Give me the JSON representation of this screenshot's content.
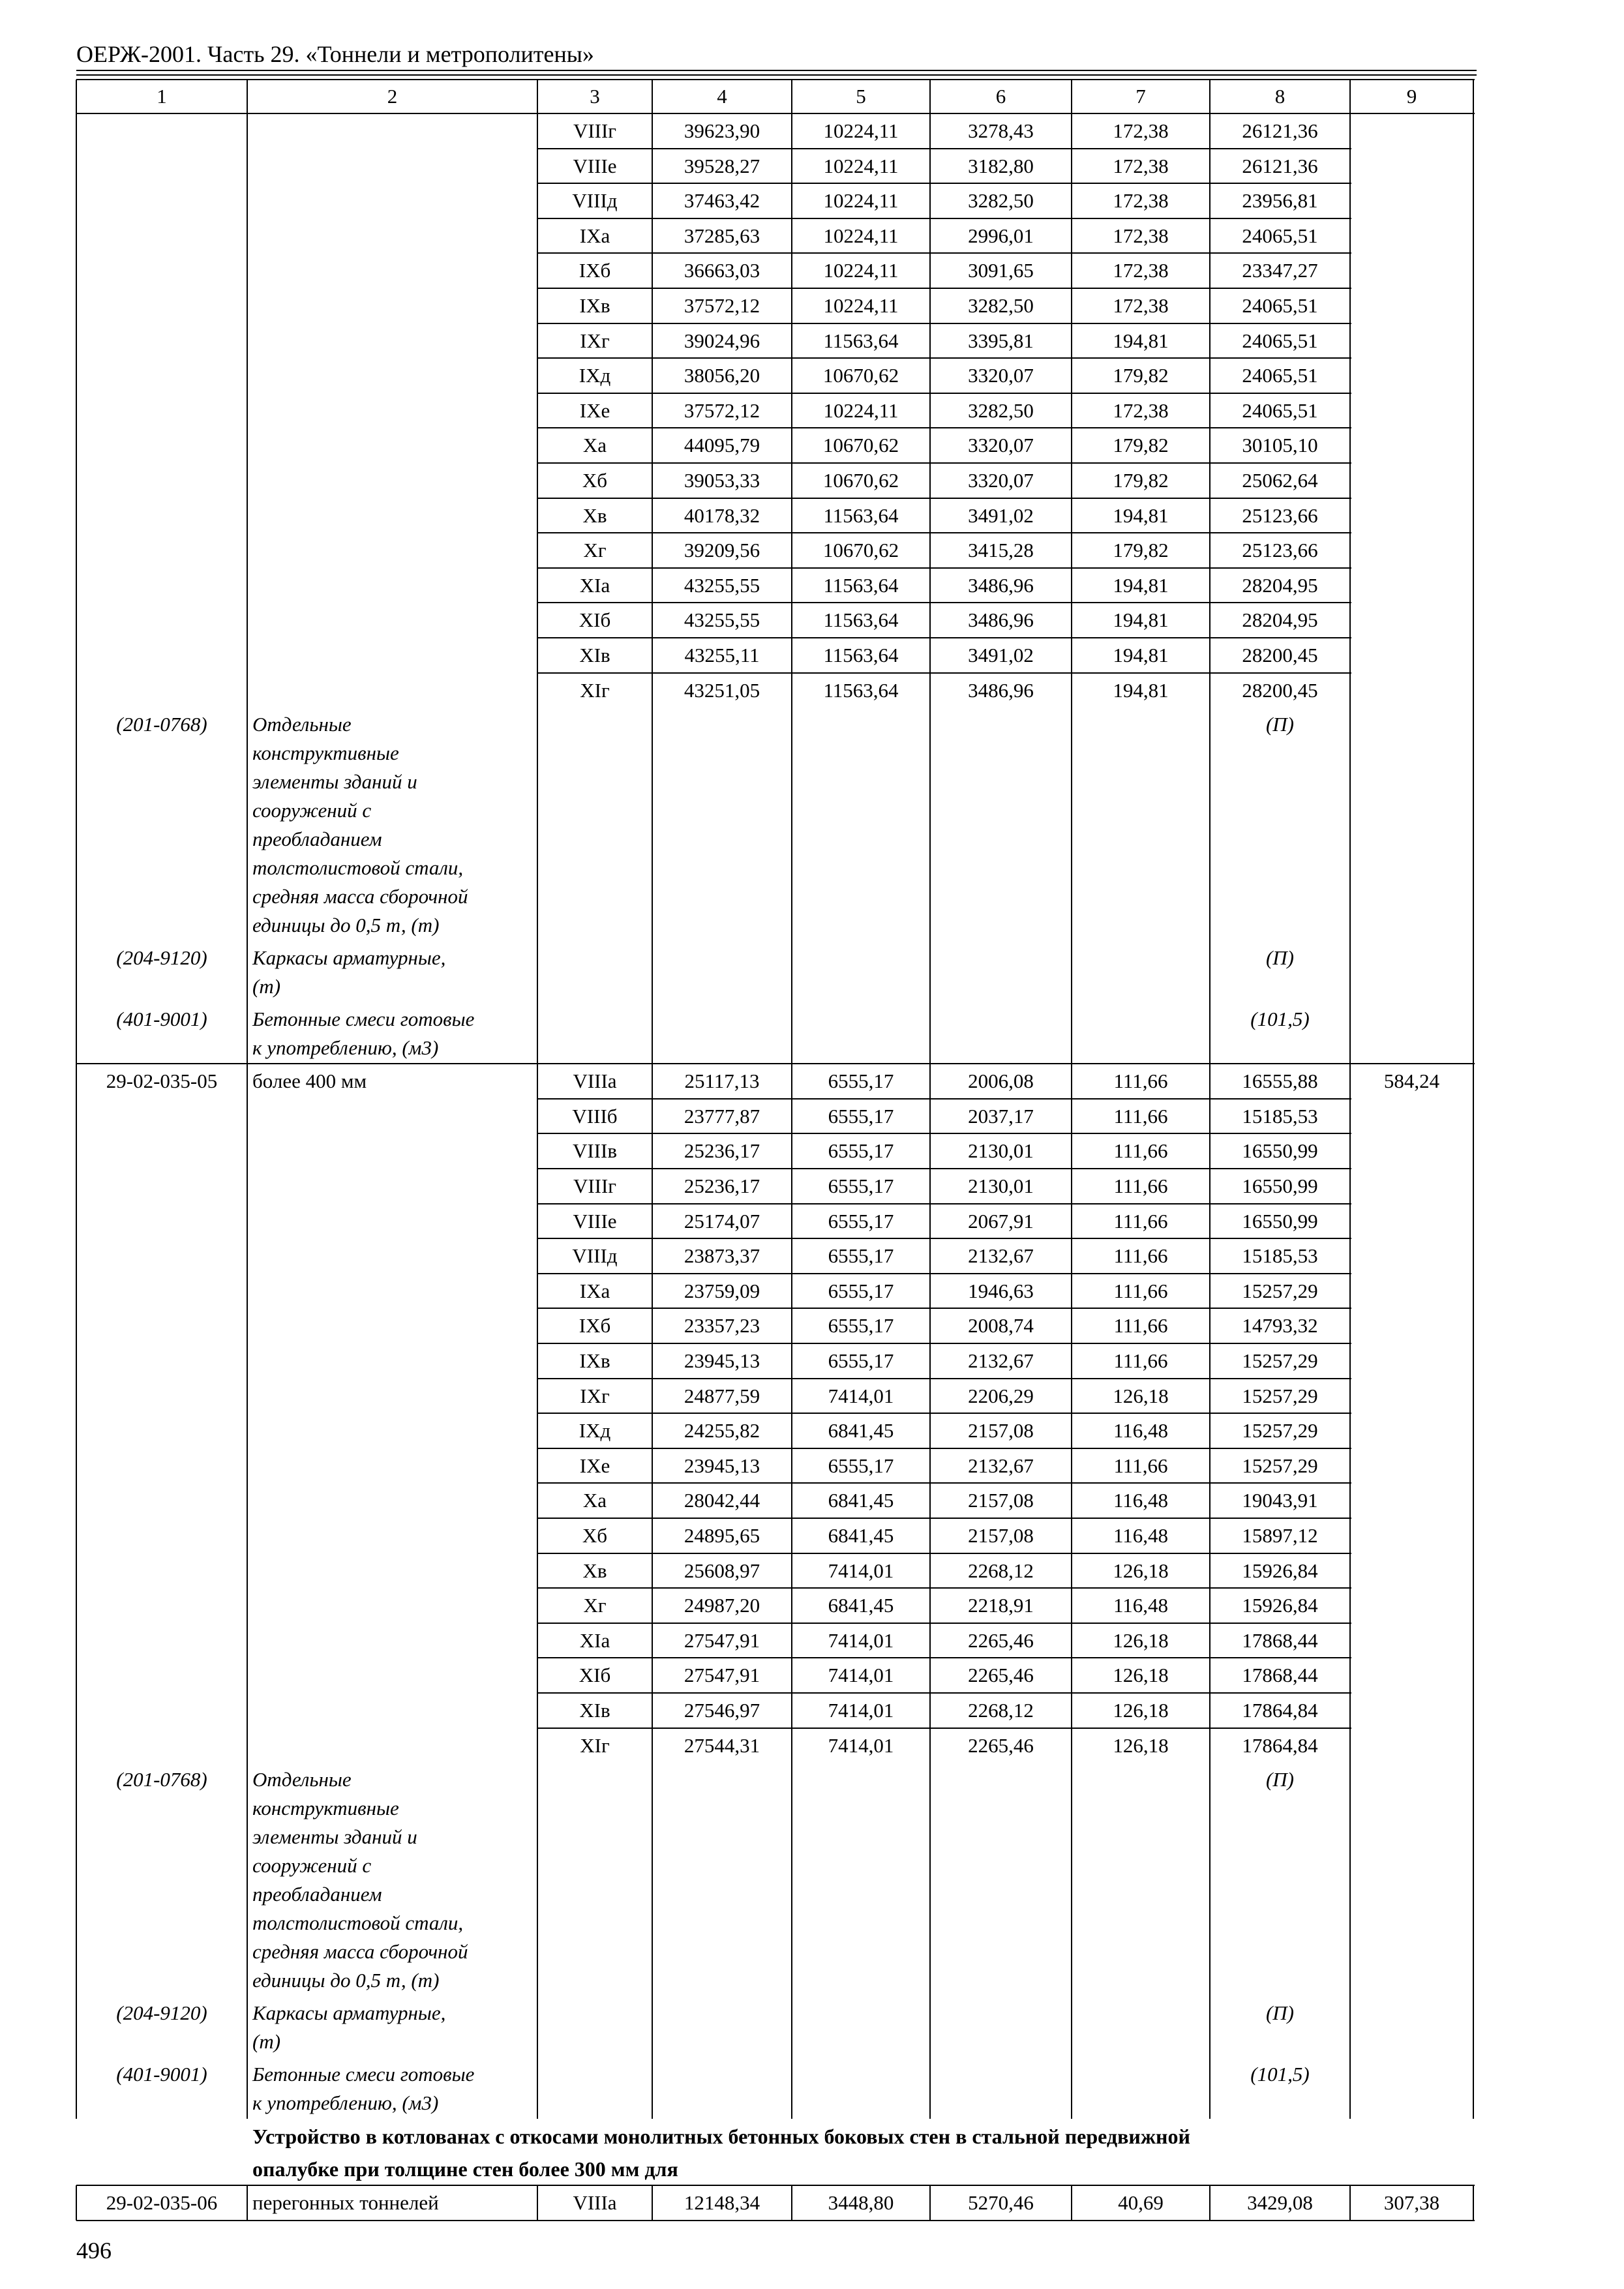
{
  "header": {
    "title": "ОЕРЖ-2001. Часть 29. «Тоннели и метрополитены»"
  },
  "table": {
    "columns": [
      "1",
      "2",
      "3",
      "4",
      "5",
      "6",
      "7",
      "8",
      "9"
    ],
    "sections": [
      {
        "rows": [
          [
            "VIIIг",
            "39623,90",
            "10224,11",
            "3278,43",
            "172,38",
            "26121,36"
          ],
          [
            "VIIIе",
            "39528,27",
            "10224,11",
            "3182,80",
            "172,38",
            "26121,36"
          ],
          [
            "VIIIд",
            "37463,42",
            "10224,11",
            "3282,50",
            "172,38",
            "23956,81"
          ],
          [
            "IXа",
            "37285,63",
            "10224,11",
            "2996,01",
            "172,38",
            "24065,51"
          ],
          [
            "IXб",
            "36663,03",
            "10224,11",
            "3091,65",
            "172,38",
            "23347,27"
          ],
          [
            "IXв",
            "37572,12",
            "10224,11",
            "3282,50",
            "172,38",
            "24065,51"
          ],
          [
            "IXг",
            "39024,96",
            "11563,64",
            "3395,81",
            "194,81",
            "24065,51"
          ],
          [
            "IXд",
            "38056,20",
            "10670,62",
            "3320,07",
            "179,82",
            "24065,51"
          ],
          [
            "IXе",
            "37572,12",
            "10224,11",
            "3282,50",
            "172,38",
            "24065,51"
          ],
          [
            "Xа",
            "44095,79",
            "10670,62",
            "3320,07",
            "179,82",
            "30105,10"
          ],
          [
            "Xб",
            "39053,33",
            "10670,62",
            "3320,07",
            "179,82",
            "25062,64"
          ],
          [
            "Xв",
            "40178,32",
            "11563,64",
            "3491,02",
            "194,81",
            "25123,66"
          ],
          [
            "Xг",
            "39209,56",
            "10670,62",
            "3415,28",
            "179,82",
            "25123,66"
          ],
          [
            "XIа",
            "43255,55",
            "11563,64",
            "3486,96",
            "194,81",
            "28204,95"
          ],
          [
            "XIб",
            "43255,55",
            "11563,64",
            "3486,96",
            "194,81",
            "28204,95"
          ],
          [
            "XIв",
            "43255,11",
            "11563,64",
            "3491,02",
            "194,81",
            "28200,45"
          ],
          [
            "XIг",
            "43251,05",
            "11563,64",
            "3486,96",
            "194,81",
            "28200,45"
          ]
        ],
        "resources": [
          {
            "code": "(201-0768)",
            "name_lines": [
              "Отдельные",
              "конструктивные",
              "элементы зданий и",
              "сооружений с",
              "преобладанием",
              "толстолистовой стали,",
              "средняя масса сборочной",
              "единицы до 0,5 т, (т)"
            ],
            "value": "(П)"
          },
          {
            "code": "(204-9120)",
            "name_lines": [
              "Каркасы арматурные,",
              "(т)"
            ],
            "value": "(П)"
          },
          {
            "code": "(401-9001)",
            "name_lines": [
              "Бетонные смеси готовые",
              "к употреблению, (м3)"
            ],
            "value": "(101,5)"
          }
        ]
      },
      {
        "code": "29-02-035-05",
        "name": "более 400 мм",
        "total": "584,24",
        "rows": [
          [
            "VIIIа",
            "25117,13",
            "6555,17",
            "2006,08",
            "111,66",
            "16555,88"
          ],
          [
            "VIIIб",
            "23777,87",
            "6555,17",
            "2037,17",
            "111,66",
            "15185,53"
          ],
          [
            "VIIIв",
            "25236,17",
            "6555,17",
            "2130,01",
            "111,66",
            "16550,99"
          ],
          [
            "VIIIг",
            "25236,17",
            "6555,17",
            "2130,01",
            "111,66",
            "16550,99"
          ],
          [
            "VIIIе",
            "25174,07",
            "6555,17",
            "2067,91",
            "111,66",
            "16550,99"
          ],
          [
            "VIIIд",
            "23873,37",
            "6555,17",
            "2132,67",
            "111,66",
            "15185,53"
          ],
          [
            "IXа",
            "23759,09",
            "6555,17",
            "1946,63",
            "111,66",
            "15257,29"
          ],
          [
            "IXб",
            "23357,23",
            "6555,17",
            "2008,74",
            "111,66",
            "14793,32"
          ],
          [
            "IXв",
            "23945,13",
            "6555,17",
            "2132,67",
            "111,66",
            "15257,29"
          ],
          [
            "IXг",
            "24877,59",
            "7414,01",
            "2206,29",
            "126,18",
            "15257,29"
          ],
          [
            "IXд",
            "24255,82",
            "6841,45",
            "2157,08",
            "116,48",
            "15257,29"
          ],
          [
            "IXе",
            "23945,13",
            "6555,17",
            "2132,67",
            "111,66",
            "15257,29"
          ],
          [
            "Xа",
            "28042,44",
            "6841,45",
            "2157,08",
            "116,48",
            "19043,91"
          ],
          [
            "Xб",
            "24895,65",
            "6841,45",
            "2157,08",
            "116,48",
            "15897,12"
          ],
          [
            "Xв",
            "25608,97",
            "7414,01",
            "2268,12",
            "126,18",
            "15926,84"
          ],
          [
            "Xг",
            "24987,20",
            "6841,45",
            "2218,91",
            "116,48",
            "15926,84"
          ],
          [
            "XIа",
            "27547,91",
            "7414,01",
            "2265,46",
            "126,18",
            "17868,44"
          ],
          [
            "XIб",
            "27547,91",
            "7414,01",
            "2265,46",
            "126,18",
            "17868,44"
          ],
          [
            "XIв",
            "27546,97",
            "7414,01",
            "2268,12",
            "126,18",
            "17864,84"
          ],
          [
            "XIг",
            "27544,31",
            "7414,01",
            "2265,46",
            "126,18",
            "17864,84"
          ]
        ],
        "resources": [
          {
            "code": "(201-0768)",
            "name_lines": [
              "Отдельные",
              "конструктивные",
              "элементы зданий и",
              "сооружений с",
              "преобладанием",
              "толстолистовой стали,",
              "средняя масса сборочной",
              "единицы до 0,5 т, (т)"
            ],
            "value": "(П)"
          },
          {
            "code": "(204-9120)",
            "name_lines": [
              "Каркасы арматурные,",
              "(т)"
            ],
            "value": "(П)"
          },
          {
            "code": "(401-9001)",
            "name_lines": [
              "Бетонные смеси готовые",
              "к употреблению, (м3)"
            ],
            "value": "(101,5)"
          }
        ]
      },
      {
        "heading_lines": [
          "Устройство в котлованах с откосами монолитных бетонных боковых стен в стальной передвижной",
          "опалубке при толщине стен более 300 мм для"
        ],
        "code": "29-02-035-06",
        "name": "перегонных тоннелей",
        "total": "307,38",
        "rows": [
          [
            "VIIIа",
            "12148,34",
            "3448,80",
            "5270,46",
            "40,69",
            "3429,08"
          ]
        ]
      }
    ]
  },
  "page_number": "496"
}
